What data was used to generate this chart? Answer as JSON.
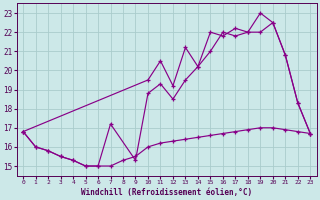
{
  "xlabel": "Windchill (Refroidissement éolien,°C)",
  "background_color": "#cce8e8",
  "grid_color": "#aacccc",
  "line_color": "#880088",
  "ylim": [
    14.5,
    23.5
  ],
  "yticks": [
    15,
    16,
    17,
    18,
    19,
    20,
    21,
    22,
    23
  ],
  "xlim": [
    -0.5,
    23.5
  ],
  "line1_x": [
    0,
    1,
    2,
    3,
    4,
    5,
    6,
    7,
    8,
    9,
    10,
    11,
    12,
    13,
    14,
    15,
    16,
    17,
    18,
    19,
    20,
    21,
    22,
    23
  ],
  "line1_y": [
    16.8,
    16.0,
    15.8,
    15.5,
    15.3,
    15.0,
    15.0,
    15.0,
    15.3,
    15.5,
    16.0,
    16.2,
    16.3,
    16.4,
    16.5,
    16.6,
    16.7,
    16.8,
    16.9,
    17.0,
    17.0,
    16.9,
    16.8,
    16.7
  ],
  "line2_x": [
    0,
    1,
    2,
    3,
    4,
    5,
    6,
    7,
    9,
    10,
    11,
    12,
    13,
    14,
    15,
    16,
    17,
    18,
    19,
    20,
    21,
    22,
    23
  ],
  "line2_y": [
    16.8,
    16.0,
    15.8,
    15.5,
    15.3,
    15.0,
    15.0,
    17.2,
    15.3,
    18.8,
    19.3,
    18.5,
    19.5,
    20.2,
    21.0,
    22.0,
    21.8,
    22.0,
    22.0,
    22.5,
    20.8,
    18.3,
    16.7
  ],
  "line3_x": [
    0,
    10,
    11,
    12,
    13,
    14,
    15,
    16,
    17,
    18,
    19,
    20,
    21,
    22,
    23
  ],
  "line3_y": [
    16.8,
    19.5,
    20.5,
    19.2,
    21.2,
    20.2,
    22.0,
    21.8,
    22.2,
    22.0,
    23.0,
    22.5,
    20.8,
    18.3,
    16.7
  ]
}
